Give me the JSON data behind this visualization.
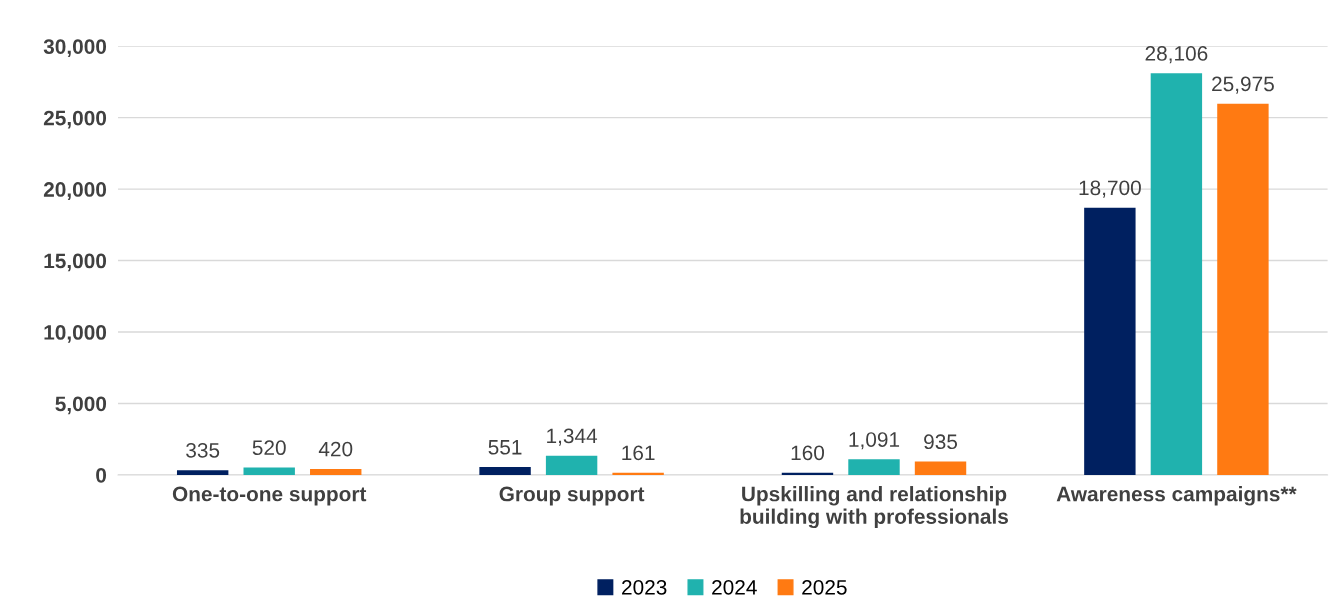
{
  "chart_data": {
    "type": "bar",
    "categories": [
      "One-to-one support",
      "Group support",
      "Upskilling and relationship\nbuilding with professionals",
      "Awareness campaigns**"
    ],
    "series": [
      {
        "name": "2023",
        "color": "#002060",
        "values": [
          335,
          551,
          160,
          18700
        ],
        "value_labels": [
          "335",
          "551",
          "160",
          "18,700"
        ]
      },
      {
        "name": "2024",
        "color": "#20b2ae",
        "values": [
          520,
          1344,
          1091,
          28106
        ],
        "value_labels": [
          "520",
          "1,344",
          "1,091",
          "28,106"
        ]
      },
      {
        "name": "2025",
        "color": "#ff7a12",
        "values": [
          420,
          161,
          935,
          25975
        ],
        "value_labels": [
          "420",
          "161",
          "935",
          "25,975"
        ]
      }
    ],
    "ylim": [
      0,
      30000
    ],
    "yticks": [
      0,
      {
        "value": 5000,
        "label": "5,000"
      },
      {
        "value": 10000,
        "label": "10,000"
      },
      {
        "value": 15000,
        "label": "15,000"
      },
      {
        "value": 20000,
        "label": "20,000"
      },
      {
        "value": 25000,
        "label": "25,000"
      },
      {
        "value": 30000,
        "label": "30,000"
      }
    ],
    "grid": "y",
    "legend": "bottom"
  }
}
